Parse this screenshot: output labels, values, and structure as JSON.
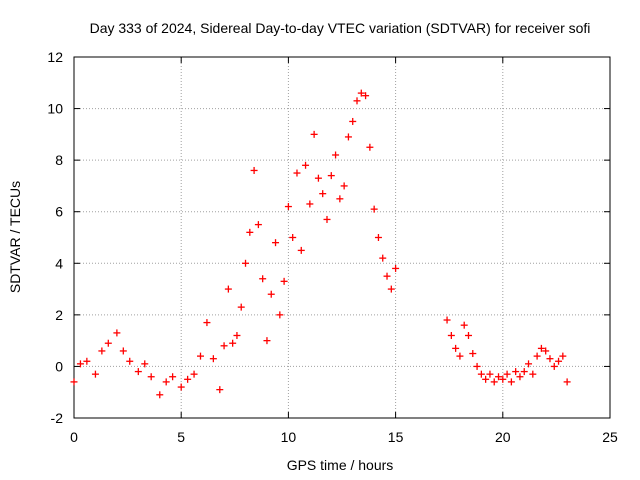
{
  "chart_data": {
    "type": "scatter",
    "title": "Day 333 of 2024, Sidereal Day-to-day VTEC variation (SDTVAR) for receiver sofi",
    "xlabel": "GPS time / hours",
    "ylabel": "SDTVAR / TECUs",
    "xlim": [
      0,
      25
    ],
    "ylim": [
      -2,
      12
    ],
    "xticks": [
      "0",
      "5",
      "10",
      "15",
      "20",
      "25"
    ],
    "yticks": [
      "-2",
      "0",
      "2",
      "4",
      "6",
      "8",
      "10",
      "12"
    ],
    "grid": true,
    "marker": "+",
    "series": [
      {
        "name": "SDTVAR",
        "color": "#ff0000",
        "x": [
          0.0,
          0.3,
          0.6,
          1.0,
          1.3,
          1.6,
          2.0,
          2.3,
          2.6,
          3.0,
          3.3,
          3.6,
          4.0,
          4.3,
          4.6,
          5.0,
          5.3,
          5.6,
          5.9,
          6.2,
          6.5,
          6.8,
          7.0,
          7.2,
          7.4,
          7.6,
          7.8,
          8.0,
          8.2,
          8.4,
          8.6,
          8.8,
          9.0,
          9.2,
          9.4,
          9.6,
          9.8,
          10.0,
          10.2,
          10.4,
          10.6,
          10.8,
          11.0,
          11.2,
          11.4,
          11.6,
          11.8,
          12.0,
          12.2,
          12.4,
          12.6,
          12.8,
          13.0,
          13.2,
          13.4,
          13.6,
          13.8,
          14.0,
          14.2,
          14.4,
          14.6,
          14.8,
          15.0,
          17.4,
          17.6,
          17.8,
          18.0,
          18.2,
          18.4,
          18.6,
          18.8,
          19.0,
          19.2,
          19.4,
          19.6,
          19.8,
          20.0,
          20.2,
          20.4,
          20.6,
          20.8,
          21.0,
          21.2,
          21.4,
          21.6,
          21.8,
          22.0,
          22.2,
          22.4,
          22.6,
          22.8,
          23.0
        ],
        "y": [
          -0.6,
          0.1,
          0.2,
          -0.3,
          0.6,
          0.9,
          1.3,
          0.6,
          0.2,
          -0.2,
          0.1,
          -0.4,
          -1.1,
          -0.6,
          -0.4,
          -0.8,
          -0.5,
          -0.3,
          0.4,
          1.7,
          0.3,
          -0.9,
          0.8,
          3.0,
          0.9,
          1.2,
          2.3,
          4.0,
          5.2,
          7.6,
          5.5,
          3.4,
          1.0,
          2.8,
          4.8,
          2.0,
          3.3,
          6.2,
          5.0,
          7.5,
          4.5,
          7.8,
          6.3,
          9.0,
          7.3,
          6.7,
          5.7,
          7.4,
          8.2,
          6.5,
          7.0,
          8.9,
          9.5,
          10.3,
          10.6,
          10.5,
          8.5,
          6.1,
          5.0,
          4.2,
          3.5,
          3.0,
          3.8,
          1.8,
          1.2,
          0.7,
          0.4,
          1.6,
          1.2,
          0.5,
          0.0,
          -0.3,
          -0.5,
          -0.3,
          -0.6,
          -0.4,
          -0.5,
          -0.3,
          -0.6,
          -0.2,
          -0.4,
          -0.2,
          0.1,
          -0.3,
          0.4,
          0.7,
          0.6,
          0.3,
          0.0,
          0.2,
          0.4,
          -0.6
        ]
      }
    ]
  }
}
